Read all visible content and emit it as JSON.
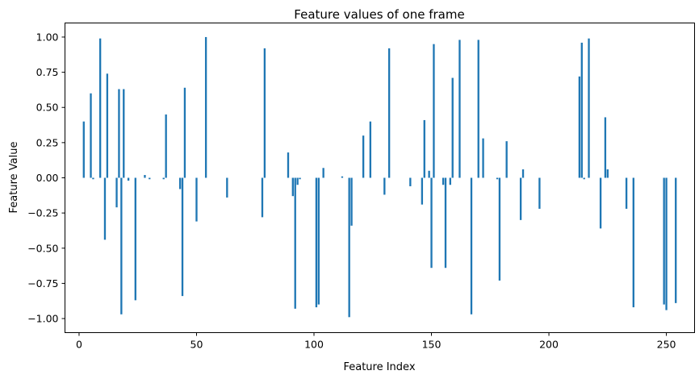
{
  "chart_data": {
    "type": "bar",
    "title": "Feature values of one frame",
    "xlabel": "Feature Index",
    "ylabel": "Feature Value",
    "xlim": [
      -6,
      262
    ],
    "ylim": [
      -1.1,
      1.1
    ],
    "xticks": [
      0,
      50,
      100,
      150,
      200,
      250
    ],
    "yticks": [
      -1.0,
      -0.75,
      -0.5,
      -0.25,
      0.0,
      0.25,
      0.5,
      0.75,
      1.0
    ],
    "ytick_labels": [
      "−1.00",
      "−0.75",
      "−0.50",
      "−0.25",
      "0.00",
      "0.25",
      "0.50",
      "0.75",
      "1.00"
    ],
    "bar_color": "#1f77b4",
    "grid": false,
    "legend": "none",
    "series": [
      {
        "values": [
          0.0,
          0.0,
          0.4,
          0.0,
          0.0,
          0.6,
          -0.01,
          0.0,
          0.0,
          0.99,
          0.0,
          -0.44,
          0.74,
          0.0,
          0.0,
          0.0,
          -0.21,
          0.63,
          -0.97,
          0.63,
          0.0,
          -0.02,
          0.0,
          0.0,
          -0.87,
          0.0,
          0.0,
          0.0,
          0.02,
          0.0,
          -0.01,
          0.0,
          0.0,
          0.0,
          0.0,
          0.0,
          -0.01,
          0.45,
          0.0,
          0.0,
          0.0,
          0.0,
          0.0,
          -0.08,
          -0.84,
          0.64,
          0.0,
          0.0,
          0.0,
          0.0,
          -0.31,
          0.0,
          0.0,
          0.0,
          1.0,
          0.0,
          0.0,
          0.0,
          0.0,
          0.0,
          0.0,
          0.0,
          0.0,
          -0.14,
          0.0,
          0.0,
          0.0,
          0.0,
          0.0,
          0.0,
          0.0,
          0.0,
          0.0,
          0.0,
          0.0,
          0.0,
          0.0,
          0.0,
          -0.28,
          0.92,
          0.0,
          0.0,
          0.0,
          0.0,
          0.0,
          0.0,
          0.0,
          0.0,
          0.0,
          0.18,
          0.0,
          -0.13,
          -0.93,
          -0.05,
          -0.01,
          0.0,
          0.0,
          0.0,
          0.0,
          0.0,
          0.0,
          -0.92,
          -0.9,
          0.0,
          0.07,
          0.0,
          0.0,
          0.0,
          0.0,
          0.0,
          0.0,
          0.0,
          0.01,
          0.0,
          0.0,
          -0.99,
          -0.34,
          0.0,
          0.0,
          0.0,
          0.0,
          0.3,
          0.0,
          0.0,
          0.4,
          0.0,
          0.0,
          0.0,
          0.0,
          0.0,
          -0.12,
          0.0,
          0.92,
          0.0,
          0.0,
          0.0,
          0.0,
          0.0,
          0.0,
          0.0,
          0.0,
          -0.06,
          0.0,
          0.0,
          0.0,
          0.0,
          -0.19,
          0.41,
          0.0,
          0.05,
          -0.64,
          0.95,
          0.0,
          0.0,
          0.0,
          -0.05,
          -0.64,
          0.0,
          -0.05,
          0.71,
          0.0,
          0.0,
          0.98,
          0.0,
          0.0,
          0.0,
          0.0,
          -0.97,
          0.0,
          0.0,
          0.98,
          0.0,
          0.28,
          0.0,
          0.0,
          0.0,
          0.0,
          0.0,
          -0.01,
          -0.73,
          0.0,
          0.0,
          0.26,
          0.0,
          0.0,
          0.0,
          0.0,
          0.0,
          -0.3,
          0.06,
          0.0,
          0.0,
          0.0,
          0.0,
          0.0,
          0.0,
          -0.22,
          0.0,
          0.0,
          0.0,
          0.0,
          0.0,
          0.0,
          0.0,
          0.0,
          0.0,
          0.0,
          0.0,
          0.0,
          0.0,
          0.0,
          0.0,
          0.0,
          0.72,
          0.96,
          -0.01,
          0.0,
          0.99,
          0.0,
          0.0,
          0.0,
          0.0,
          -0.36,
          0.0,
          0.43,
          0.06,
          0.0,
          0.0,
          0.0,
          0.0,
          0.0,
          0.0,
          0.0,
          -0.22,
          0.0,
          0.0,
          -0.92,
          0.0,
          0.0,
          0.0,
          0.0,
          0.0,
          0.0,
          0.0,
          0.0,
          0.0,
          0.0,
          0.0,
          0.0,
          -0.9,
          -0.94,
          0.0,
          0.0,
          0.0,
          -0.89,
          0.0
        ]
      }
    ]
  }
}
